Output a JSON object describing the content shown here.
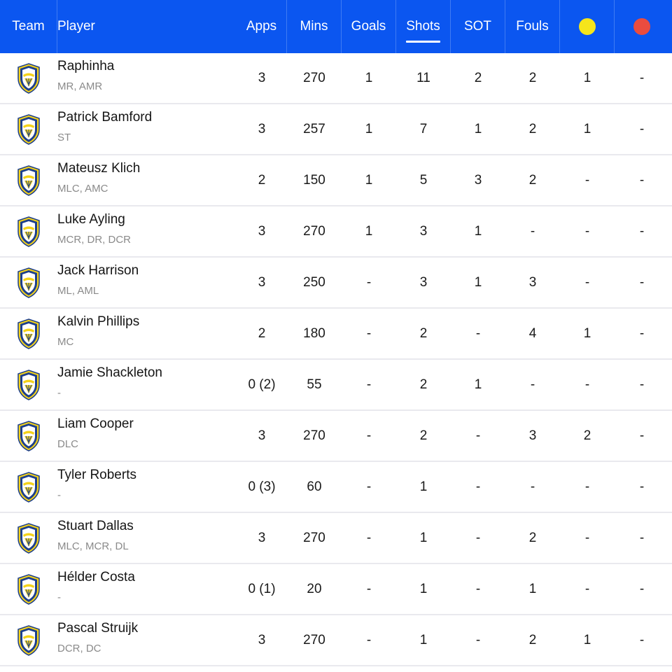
{
  "header": {
    "team": "Team",
    "player": "Player",
    "apps": "Apps",
    "mins": "Mins",
    "goals": "Goals",
    "shots": "Shots",
    "sot": "SOT",
    "fouls": "Fouls",
    "yellow_icon": "yellow-card-icon",
    "red_icon": "red-card-icon",
    "sorted_column": "Shots"
  },
  "colors": {
    "header_bg": "#0b56f0",
    "yellow_card": "#f5e51b",
    "red_card": "#ea4c3f",
    "row_divider": "#e9e9ee",
    "position_text": "#8a8a8a"
  },
  "team_icon": "leeds-united-crest-icon",
  "rows": [
    {
      "name": "Raphinha",
      "pos": "MR, AMR",
      "apps": "3",
      "mins": "270",
      "goals": "1",
      "shots": "11",
      "sot": "2",
      "fouls": "2",
      "yellow": "1",
      "red": "-"
    },
    {
      "name": "Patrick Bamford",
      "pos": "ST",
      "apps": "3",
      "mins": "257",
      "goals": "1",
      "shots": "7",
      "sot": "1",
      "fouls": "2",
      "yellow": "1",
      "red": "-"
    },
    {
      "name": "Mateusz Klich",
      "pos": "MLC, AMC",
      "apps": "2",
      "mins": "150",
      "goals": "1",
      "shots": "5",
      "sot": "3",
      "fouls": "2",
      "yellow": "-",
      "red": "-"
    },
    {
      "name": "Luke Ayling",
      "pos": "MCR, DR, DCR",
      "apps": "3",
      "mins": "270",
      "goals": "1",
      "shots": "3",
      "sot": "1",
      "fouls": "-",
      "yellow": "-",
      "red": "-"
    },
    {
      "name": "Jack Harrison",
      "pos": "ML, AML",
      "apps": "3",
      "mins": "250",
      "goals": "-",
      "shots": "3",
      "sot": "1",
      "fouls": "3",
      "yellow": "-",
      "red": "-"
    },
    {
      "name": "Kalvin Phillips",
      "pos": "MC",
      "apps": "2",
      "mins": "180",
      "goals": "-",
      "shots": "2",
      "sot": "-",
      "fouls": "4",
      "yellow": "1",
      "red": "-"
    },
    {
      "name": "Jamie Shackleton",
      "pos": "-",
      "apps": "0 (2)",
      "mins": "55",
      "goals": "-",
      "shots": "2",
      "sot": "1",
      "fouls": "-",
      "yellow": "-",
      "red": "-"
    },
    {
      "name": "Liam Cooper",
      "pos": "DLC",
      "apps": "3",
      "mins": "270",
      "goals": "-",
      "shots": "2",
      "sot": "-",
      "fouls": "3",
      "yellow": "2",
      "red": "-"
    },
    {
      "name": "Tyler Roberts",
      "pos": "-",
      "apps": "0 (3)",
      "mins": "60",
      "goals": "-",
      "shots": "1",
      "sot": "-",
      "fouls": "-",
      "yellow": "-",
      "red": "-"
    },
    {
      "name": "Stuart Dallas",
      "pos": "MLC, MCR, DL",
      "apps": "3",
      "mins": "270",
      "goals": "-",
      "shots": "1",
      "sot": "-",
      "fouls": "2",
      "yellow": "-",
      "red": "-"
    },
    {
      "name": "Hélder Costa",
      "pos": "-",
      "apps": "0 (1)",
      "mins": "20",
      "goals": "-",
      "shots": "1",
      "sot": "-",
      "fouls": "1",
      "yellow": "-",
      "red": "-"
    },
    {
      "name": "Pascal Struijk",
      "pos": "DCR, DC",
      "apps": "3",
      "mins": "270",
      "goals": "-",
      "shots": "1",
      "sot": "-",
      "fouls": "2",
      "yellow": "1",
      "red": "-"
    }
  ]
}
